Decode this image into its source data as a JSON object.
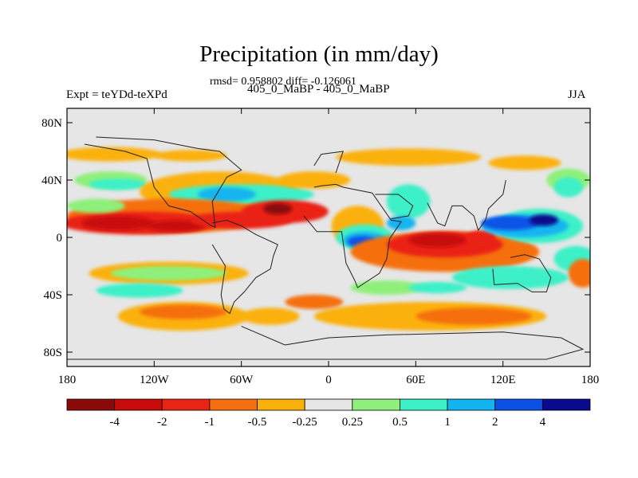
{
  "chart_data": {
    "type": "heatmap",
    "title": "Precipitation (in mm/day)",
    "stats_text": "rmsd= 0.958802 diff= -0.126061",
    "subtitle": "405_0_MaBP - 405_0_MaBP",
    "left_label": "Expt = teYDd-teXPd",
    "right_label": "JJA",
    "xlim": [
      -180,
      180
    ],
    "ylim": [
      -90,
      90
    ],
    "x_ticks": [
      {
        "value": -180,
        "label": "180"
      },
      {
        "value": -120,
        "label": "120W"
      },
      {
        "value": -60,
        "label": "60W"
      },
      {
        "value": 0,
        "label": "0"
      },
      {
        "value": 60,
        "label": "60E"
      },
      {
        "value": 120,
        "label": "120E"
      },
      {
        "value": 180,
        "label": "180"
      }
    ],
    "y_ticks": [
      {
        "value": 80,
        "label": "80N"
      },
      {
        "value": 40,
        "label": "40N"
      },
      {
        "value": 0,
        "label": "0"
      },
      {
        "value": -40,
        "label": "40S"
      },
      {
        "value": -80,
        "label": "80S"
      }
    ],
    "colorbar": {
      "colors": [
        "#8a0a0a",
        "#c80a0a",
        "#ea2415",
        "#f57010",
        "#fbb10a",
        "#e6e6e6",
        "#8ef07a",
        "#3cf0c8",
        "#12b4f0",
        "#0a52e6",
        "#0a0a8c"
      ],
      "labels": [
        "-4",
        "-2",
        "-1",
        "-0.5",
        "-0.25",
        "0.25",
        "0.5",
        "1",
        "2",
        "4"
      ]
    },
    "blobs": [
      {
        "lon": -150,
        "lat": 58,
        "rlon": 35,
        "rlat": 5,
        "cls": 4
      },
      {
        "lon": -95,
        "lat": 57,
        "rlon": 25,
        "rlat": 4,
        "cls": 4
      },
      {
        "lon": 55,
        "lat": 56,
        "rlon": 50,
        "rlat": 6,
        "cls": 4
      },
      {
        "lon": 135,
        "lat": 52,
        "rlon": 25,
        "rlat": 5,
        "cls": 4
      },
      {
        "lon": 165,
        "lat": 40,
        "rlon": 15,
        "rlat": 8,
        "cls": 6
      },
      {
        "lon": -150,
        "lat": 40,
        "rlon": 25,
        "rlat": 6,
        "cls": 6
      },
      {
        "lon": -145,
        "lat": 37,
        "rlon": 20,
        "rlat": 4,
        "cls": 7
      },
      {
        "lon": -75,
        "lat": 32,
        "rlon": 55,
        "rlat": 14,
        "cls": 4
      },
      {
        "lon": -60,
        "lat": 30,
        "rlon": 50,
        "rlat": 7,
        "cls": 7
      },
      {
        "lon": -70,
        "lat": 30,
        "rlon": 20,
        "rlat": 5,
        "cls": 8
      },
      {
        "lon": -10,
        "lat": 40,
        "rlon": 25,
        "rlat": 6,
        "cls": 4
      },
      {
        "lon": -110,
        "lat": 15,
        "rlon": 70,
        "rlat": 12,
        "cls": 3
      },
      {
        "lon": -130,
        "lat": 10,
        "rlon": 55,
        "rlat": 8,
        "cls": 2
      },
      {
        "lon": -145,
        "lat": 10,
        "rlon": 25,
        "rlat": 5,
        "cls": 1
      },
      {
        "lon": -105,
        "lat": 8,
        "rlon": 20,
        "rlat": 4,
        "cls": 1
      },
      {
        "lon": -60,
        "lat": 12,
        "rlon": 35,
        "rlat": 6,
        "cls": 2
      },
      {
        "lon": -30,
        "lat": 18,
        "rlon": 30,
        "rlat": 8,
        "cls": 2
      },
      {
        "lon": -35,
        "lat": 20,
        "rlon": 10,
        "rlat": 4,
        "cls": 0
      },
      {
        "lon": -160,
        "lat": 22,
        "rlon": 20,
        "rlat": 5,
        "cls": 6
      },
      {
        "lon": 20,
        "lat": 8,
        "rlon": 18,
        "rlat": 14,
        "cls": 4
      },
      {
        "lon": 25,
        "lat": 0,
        "rlon": 20,
        "rlat": 9,
        "cls": 7
      },
      {
        "lon": 25,
        "lat": -2,
        "rlon": 15,
        "rlat": 6,
        "cls": 8
      },
      {
        "lon": 23,
        "lat": -3,
        "rlon": 10,
        "rlat": 4,
        "cls": 9
      },
      {
        "lon": 55,
        "lat": 25,
        "rlon": 15,
        "rlat": 12,
        "cls": 7
      },
      {
        "lon": 50,
        "lat": 10,
        "rlon": 10,
        "rlat": 5,
        "cls": 8
      },
      {
        "lon": 80,
        "lat": -10,
        "rlon": 65,
        "rlat": 14,
        "cls": 3
      },
      {
        "lon": 80,
        "lat": -5,
        "rlon": 40,
        "rlat": 9,
        "cls": 2
      },
      {
        "lon": 75,
        "lat": -2,
        "rlon": 20,
        "rlat": 5,
        "cls": 1
      },
      {
        "lon": 105,
        "lat": 0,
        "rlon": 10,
        "rlat": 5,
        "cls": 2
      },
      {
        "lon": 145,
        "lat": 8,
        "rlon": 30,
        "rlat": 12,
        "cls": 7
      },
      {
        "lon": 135,
        "lat": 8,
        "rlon": 30,
        "rlat": 8,
        "cls": 8
      },
      {
        "lon": 125,
        "lat": 10,
        "rlon": 20,
        "rlat": 5,
        "cls": 9
      },
      {
        "lon": 148,
        "lat": 12,
        "rlon": 10,
        "rlat": 4,
        "cls": 10
      },
      {
        "lon": 165,
        "lat": 35,
        "rlon": 10,
        "rlat": 7,
        "cls": 7
      },
      {
        "lon": 170,
        "lat": -15,
        "rlon": 15,
        "rlat": 9,
        "cls": 7
      },
      {
        "lon": 175,
        "lat": -25,
        "rlon": 10,
        "rlat": 10,
        "cls": 3
      },
      {
        "lon": 125,
        "lat": -28,
        "rlon": 40,
        "rlat": 8,
        "cls": 7
      },
      {
        "lon": -110,
        "lat": -25,
        "rlon": 55,
        "rlat": 8,
        "cls": 4
      },
      {
        "lon": -110,
        "lat": -25,
        "rlon": 40,
        "rlat": 5,
        "cls": 6
      },
      {
        "lon": -130,
        "lat": -37,
        "rlon": 30,
        "rlat": 5,
        "cls": 7
      },
      {
        "lon": -100,
        "lat": -55,
        "rlon": 45,
        "rlat": 10,
        "cls": 4
      },
      {
        "lon": -100,
        "lat": -52,
        "rlon": 30,
        "rlat": 5,
        "cls": 3
      },
      {
        "lon": 40,
        "lat": -35,
        "rlon": 25,
        "rlat": 5,
        "cls": 6
      },
      {
        "lon": 75,
        "lat": -35,
        "rlon": 20,
        "rlat": 4,
        "cls": 7
      },
      {
        "lon": 70,
        "lat": -55,
        "rlon": 80,
        "rlat": 10,
        "cls": 4
      },
      {
        "lon": 100,
        "lat": -55,
        "rlon": 40,
        "rlat": 6,
        "cls": 3
      },
      {
        "lon": -10,
        "lat": -45,
        "rlon": 20,
        "rlat": 5,
        "cls": 3
      },
      {
        "lon": -40,
        "lat": -55,
        "rlon": 20,
        "rlat": 6,
        "cls": 4
      }
    ],
    "outlines": [
      [
        [
          -168,
          65
        ],
        [
          -140,
          60
        ],
        [
          -125,
          55
        ],
        [
          -120,
          35
        ],
        [
          -110,
          22
        ],
        [
          -95,
          18
        ],
        [
          -82,
          9
        ],
        [
          -78,
          7
        ],
        [
          -80,
          25
        ],
        [
          -70,
          42
        ],
        [
          -60,
          47
        ],
        [
          -75,
          60
        ],
        [
          -90,
          62
        ],
        [
          -120,
          68
        ],
        [
          -160,
          70
        ]
      ],
      [
        [
          -80,
          10
        ],
        [
          -70,
          12
        ],
        [
          -60,
          8
        ],
        [
          -50,
          2
        ],
        [
          -35,
          -5
        ],
        [
          -38,
          -13
        ],
        [
          -40,
          -22
        ],
        [
          -50,
          -28
        ],
        [
          -58,
          -38
        ],
        [
          -65,
          -45
        ],
        [
          -68,
          -53
        ],
        [
          -72,
          -50
        ],
        [
          -74,
          -40
        ],
        [
          -71,
          -20
        ],
        [
          -80,
          -5
        ]
      ],
      [
        [
          -10,
          35
        ],
        [
          -5,
          36
        ],
        [
          5,
          37
        ],
        [
          10,
          35
        ],
        [
          30,
          31
        ],
        [
          43,
          12
        ],
        [
          50,
          11
        ],
        [
          42,
          -1
        ],
        [
          40,
          -15
        ],
        [
          35,
          -25
        ],
        [
          20,
          -35
        ],
        [
          18,
          -30
        ],
        [
          12,
          -18
        ],
        [
          9,
          4
        ],
        [
          -8,
          4
        ],
        [
          -17,
          15
        ]
      ],
      [
        [
          -10,
          50
        ],
        [
          -5,
          58
        ],
        [
          10,
          60
        ],
        [
          5,
          45
        ]
      ],
      [
        [
          32,
          30
        ],
        [
          48,
          30
        ],
        [
          58,
          22
        ],
        [
          55,
          15
        ],
        [
          43,
          13
        ]
      ],
      [
        [
          68,
          24
        ],
        [
          75,
          10
        ],
        [
          80,
          8
        ],
        [
          85,
          22
        ],
        [
          92,
          22
        ],
        [
          100,
          15
        ],
        [
          103,
          5
        ],
        [
          108,
          12
        ],
        [
          110,
          20
        ],
        [
          120,
          30
        ],
        [
          122,
          40
        ]
      ],
      [
        [
          113,
          -22
        ],
        [
          114,
          -33
        ],
        [
          130,
          -32
        ],
        [
          140,
          -38
        ],
        [
          150,
          -38
        ],
        [
          153,
          -28
        ],
        [
          145,
          -15
        ],
        [
          135,
          -12
        ],
        [
          125,
          -14
        ]
      ],
      [
        [
          -60,
          -62
        ],
        [
          -30,
          -75
        ],
        [
          0,
          -70
        ],
        [
          40,
          -68
        ],
        [
          80,
          -67
        ],
        [
          120,
          -66
        ],
        [
          160,
          -70
        ],
        [
          175,
          -78
        ],
        [
          150,
          -85
        ],
        [
          -180,
          -85
        ]
      ]
    ]
  }
}
